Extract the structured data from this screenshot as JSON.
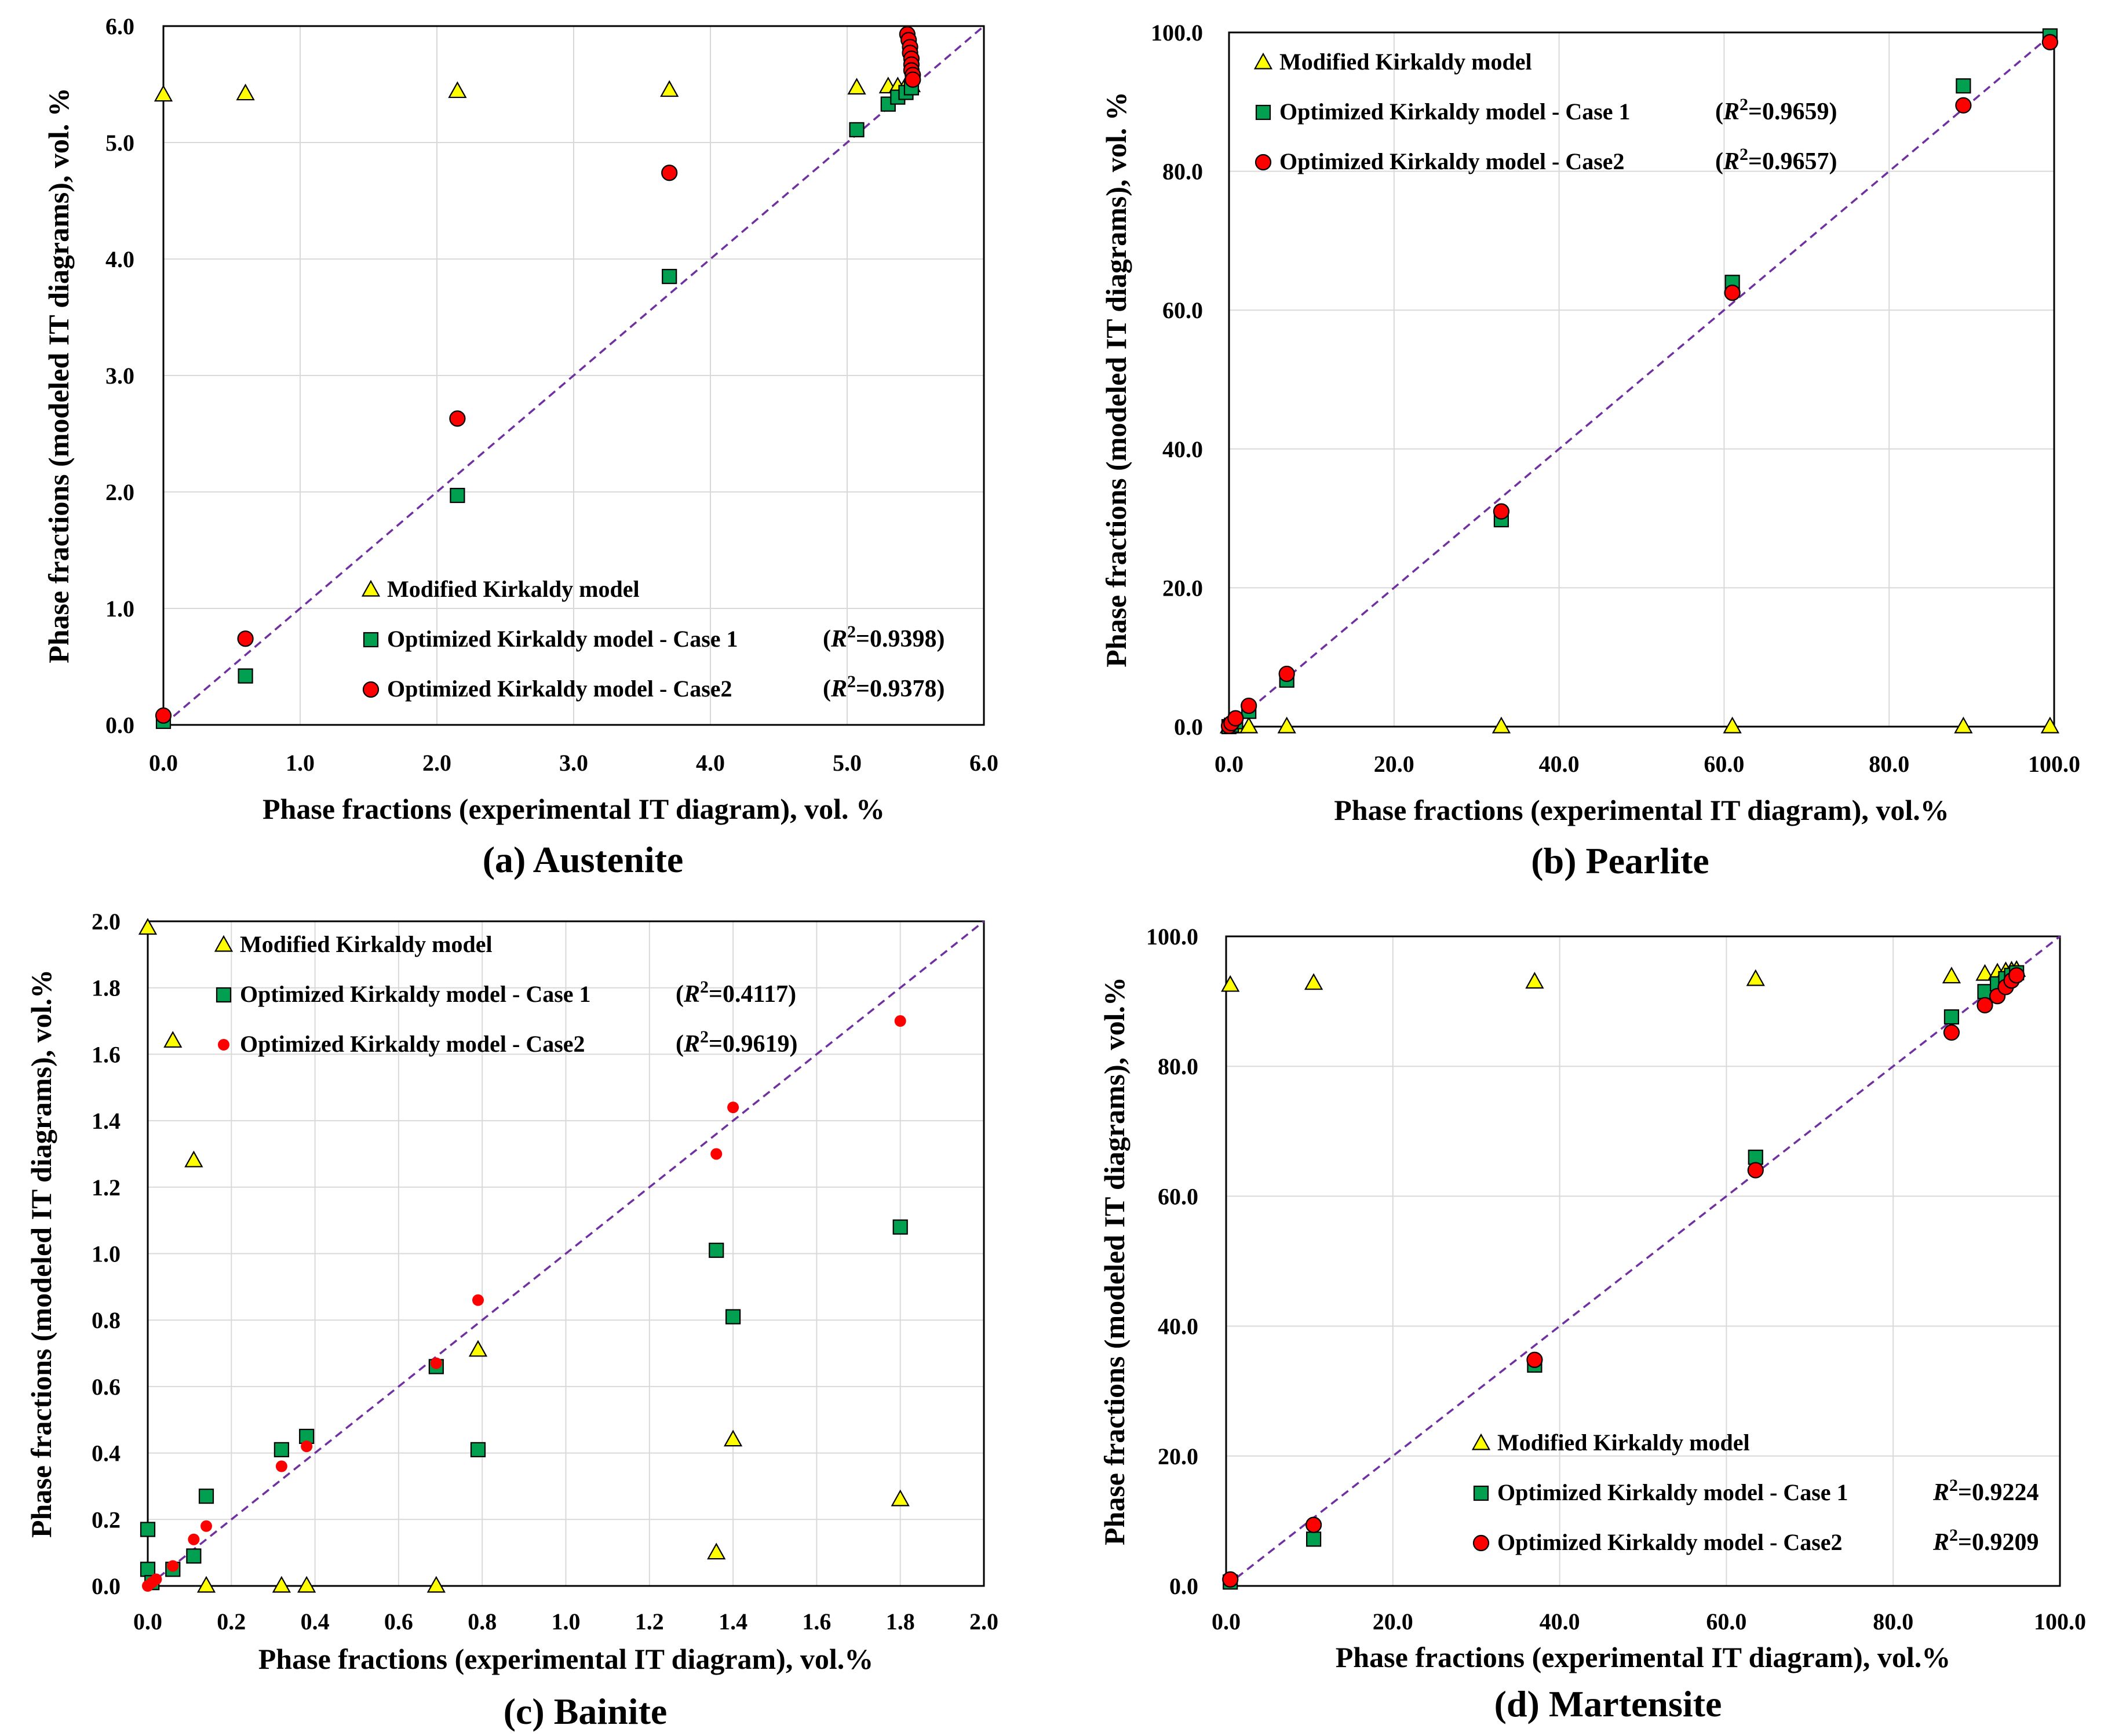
{
  "colors": {
    "modified": "#ffff00",
    "case1": "#00a050",
    "case2": "#ff0000",
    "diagonal": "#7030a0",
    "grid": "#d9d9d9"
  },
  "chart_data": [
    {
      "id": "a",
      "type": "scatter",
      "caption": "(a) Austenite",
      "xlabel": "Phase fractions (experimental IT diagram), vol. %",
      "ylabel": "Phase fractions (modeled IT diagrams), vol. %",
      "xlim": [
        0,
        6
      ],
      "ylim": [
        0,
        6
      ],
      "xticks": [
        "0.0",
        "1.0",
        "2.0",
        "3.0",
        "4.0",
        "5.0",
        "6.0"
      ],
      "yticks": [
        "0.0",
        "1.0",
        "2.0",
        "3.0",
        "4.0",
        "5.0",
        "6.0"
      ],
      "legend_position": "bottom-right",
      "legend": [
        {
          "marker": "triangle",
          "series": "modified",
          "text": "Modified  Kirkaldy  model",
          "r2": ""
        },
        {
          "marker": "square",
          "series": "case1",
          "text": "Optimized  Kirkaldy  model - Case 1",
          "r2": "(R²=0.9398)"
        },
        {
          "marker": "circle",
          "series": "case2",
          "text": "Optimized  Kirkaldy  model - Case2",
          "r2": "(R²=0.9378)"
        }
      ],
      "series": [
        {
          "name": "Modified Kirkaldy model",
          "key": "modified",
          "marker": "triangle",
          "x": [
            0.0,
            0.6,
            2.15,
            3.7,
            5.07,
            5.3,
            5.37,
            5.43,
            5.47
          ],
          "y": [
            5.41,
            5.42,
            5.44,
            5.45,
            5.47,
            5.48,
            5.48,
            5.49,
            5.49
          ]
        },
        {
          "name": "Optimized Kirkaldy model - Case 1",
          "key": "case1",
          "marker": "square",
          "x": [
            0.0,
            0.6,
            2.15,
            3.7,
            5.07,
            5.3,
            5.37,
            5.43,
            5.47
          ],
          "y": [
            0.03,
            0.42,
            1.97,
            3.85,
            5.11,
            5.33,
            5.39,
            5.43,
            5.47
          ]
        },
        {
          "name": "Optimized Kirkaldy model - Case2",
          "key": "case2",
          "marker": "circle",
          "x": [
            0.0,
            0.6,
            2.15,
            3.7,
            5.44,
            5.45,
            5.46,
            5.46,
            5.47,
            5.47,
            5.47,
            5.48,
            5.48
          ],
          "y": [
            0.08,
            0.74,
            2.63,
            4.74,
            5.93,
            5.88,
            5.82,
            5.77,
            5.72,
            5.67,
            5.62,
            5.58,
            5.54
          ]
        }
      ]
    },
    {
      "id": "b",
      "type": "scatter",
      "caption": "(b) Pearlite",
      "xlabel": "Phase fractions (experimental IT diagram), vol.%",
      "ylabel": "Phase fractions (modeled IT diagrams), vol. %",
      "xlim": [
        0,
        100
      ],
      "ylim": [
        0,
        100
      ],
      "xticks": [
        "0.0",
        "20.0",
        "40.0",
        "60.0",
        "80.0",
        "100.0"
      ],
      "yticks": [
        "0.0",
        "20.0",
        "40.0",
        "60.0",
        "80.0",
        "100.0"
      ],
      "legend_position": "top-left",
      "legend": [
        {
          "marker": "triangle",
          "series": "modified",
          "text": "Modified  Kirkaldy  model",
          "r2": ""
        },
        {
          "marker": "square",
          "series": "case1",
          "text": "Optimized  Kirkaldy  model - Case 1",
          "r2": "(R²=0.9659)"
        },
        {
          "marker": "circle",
          "series": "case2",
          "text": "Optimized  Kirkaldy  model - Case2",
          "r2": "(R²=0.9657)"
        }
      ],
      "series": [
        {
          "name": "Modified Kirkaldy model",
          "key": "modified",
          "marker": "triangle",
          "x": [
            0.0,
            0.3,
            0.8,
            2.4,
            7.0,
            33.0,
            61.0,
            89.0,
            99.5
          ],
          "y": [
            0.0,
            0.0,
            0.0,
            0.0,
            0.0,
            0.0,
            0.0,
            0.0,
            0.0
          ]
        },
        {
          "name": "Optimized Kirkaldy model - Case 1",
          "key": "case1",
          "marker": "square",
          "x": [
            0.0,
            0.3,
            0.8,
            2.4,
            7.0,
            33.0,
            61.0,
            89.0,
            99.5
          ],
          "y": [
            0.0,
            0.2,
            0.7,
            2.2,
            6.7,
            29.8,
            64.0,
            92.3,
            99.5
          ]
        },
        {
          "name": "Optimized Kirkaldy model - Case2",
          "key": "case2",
          "marker": "circle",
          "x": [
            0.0,
            0.3,
            0.8,
            2.4,
            7.0,
            33.0,
            61.0,
            89.0,
            99.5
          ],
          "y": [
            0.1,
            0.5,
            1.2,
            3.0,
            7.6,
            31.0,
            62.5,
            89.5,
            98.6
          ]
        }
      ]
    },
    {
      "id": "c",
      "type": "scatter",
      "caption": "(c) Bainite",
      "xlabel": "Phase fractions (experimental IT diagram), vol.%",
      "ylabel": "Phase fractions (modeled IT diagrams), vol.%",
      "xlim": [
        0,
        2
      ],
      "ylim": [
        0,
        2
      ],
      "xticks": [
        "0.0",
        "0.2",
        "0.4",
        "0.6",
        "0.8",
        "1.0",
        "1.2",
        "1.4",
        "1.6",
        "1.8",
        "2.0"
      ],
      "yticks": [
        "0.0",
        "0.2",
        "0.4",
        "0.6",
        "0.8",
        "1.0",
        "1.2",
        "1.4",
        "1.6",
        "1.8",
        "2.0"
      ],
      "legend_position": "top-left",
      "legend": [
        {
          "marker": "triangle",
          "series": "modified",
          "text": "Modified  Kirkaldy  model",
          "r2": ""
        },
        {
          "marker": "square",
          "series": "case1",
          "text": "Optimized  Kirkaldy  model - Case 1",
          "r2": "(R²=0.4117)"
        },
        {
          "marker": "circle-small",
          "series": "case2",
          "text": "Optimized  Kirkaldy  model - Case2",
          "r2": "(R²=0.9619)"
        }
      ],
      "series": [
        {
          "name": "Modified Kirkaldy model",
          "key": "modified",
          "marker": "triangle",
          "x": [
            0.0,
            0.06,
            0.11,
            0.14,
            0.32,
            0.38,
            0.69,
            0.79,
            1.36,
            1.4,
            1.8
          ],
          "y": [
            1.98,
            1.64,
            1.28,
            0.0,
            0.0,
            0.0,
            0.0,
            0.71,
            0.1,
            0.44,
            0.26
          ]
        },
        {
          "name": "Optimized Kirkaldy model - Case 1",
          "key": "case1",
          "marker": "square",
          "x": [
            0.0,
            0.0,
            0.01,
            0.06,
            0.11,
            0.14,
            0.32,
            0.38,
            0.69,
            0.79,
            1.36,
            1.4,
            1.8
          ],
          "y": [
            0.17,
            0.05,
            0.01,
            0.05,
            0.09,
            0.27,
            0.41,
            0.45,
            0.66,
            0.41,
            1.01,
            0.81,
            1.08
          ]
        },
        {
          "name": "Optimized Kirkaldy model - Case2",
          "key": "case2",
          "marker": "circle-small",
          "x": [
            0.0,
            0.01,
            0.02,
            0.06,
            0.11,
            0.14,
            0.32,
            0.38,
            0.69,
            0.79,
            1.36,
            1.4,
            1.8
          ],
          "y": [
            0.0,
            0.01,
            0.02,
            0.06,
            0.14,
            0.18,
            0.36,
            0.42,
            0.67,
            0.86,
            1.3,
            1.44,
            1.7
          ]
        }
      ]
    },
    {
      "id": "d",
      "type": "scatter",
      "caption": "(d) Martensite",
      "xlabel": "Phase fractions (experimental IT diagram), vol.%",
      "ylabel": "Phase fractions (modeled IT diagrams), vol.%",
      "xlim": [
        0,
        100
      ],
      "ylim": [
        0,
        100
      ],
      "xticks": [
        "0.0",
        "20.0",
        "40.0",
        "60.0",
        "80.0",
        "100.0"
      ],
      "yticks": [
        "0.0",
        "20.0",
        "40.0",
        "60.0",
        "80.0",
        "100.0"
      ],
      "legend_position": "bottom-right",
      "legend": [
        {
          "marker": "triangle",
          "series": "modified",
          "text": "Modified  Kirkaldy  model",
          "r2": ""
        },
        {
          "marker": "square",
          "series": "case1",
          "text": "Optimized  Kirkaldy  model - Case 1",
          "r2": "R²=0.9224"
        },
        {
          "marker": "circle",
          "series": "case2",
          "text": "Optimized  Kirkaldy  model - Case2",
          "r2": "R²=0.9209"
        }
      ],
      "series": [
        {
          "name": "Modified Kirkaldy model",
          "key": "modified",
          "marker": "triangle",
          "x": [
            0.5,
            10.5,
            37.0,
            63.5,
            87.0,
            91.0,
            92.5,
            93.5,
            94.2,
            94.8
          ],
          "y": [
            92.5,
            92.8,
            93.0,
            93.4,
            93.8,
            94.2,
            94.4,
            94.6,
            94.7,
            94.8
          ]
        },
        {
          "name": "Optimized Kirkaldy model - Case 1",
          "key": "case1",
          "marker": "square",
          "x": [
            0.5,
            10.5,
            37.0,
            63.5,
            87.0,
            91.0,
            92.5,
            93.5,
            94.2,
            94.8
          ],
          "y": [
            0.6,
            7.2,
            34.0,
            66.0,
            87.6,
            91.5,
            92.7,
            93.5,
            94.0,
            94.4
          ]
        },
        {
          "name": "Optimized Kirkaldy model - Case2",
          "key": "case2",
          "marker": "circle",
          "x": [
            0.5,
            10.5,
            37.0,
            63.5,
            87.0,
            91.0,
            92.5,
            93.5,
            94.2,
            94.8
          ],
          "y": [
            1.0,
            9.4,
            34.8,
            64.0,
            85.2,
            89.4,
            90.8,
            92.2,
            93.2,
            94.0
          ]
        }
      ]
    }
  ]
}
